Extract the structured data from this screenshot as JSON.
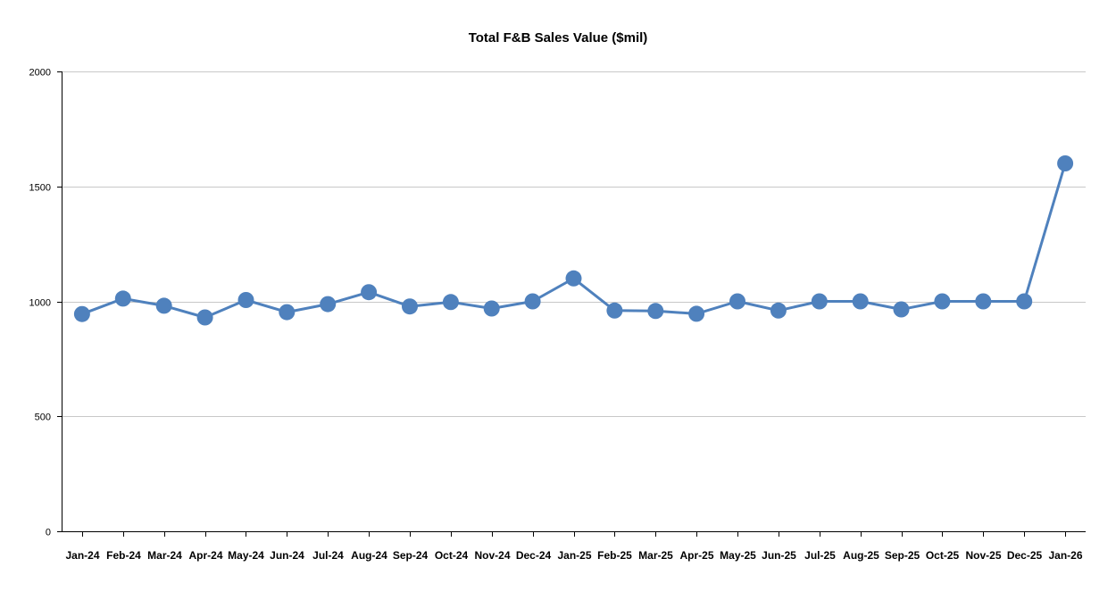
{
  "chart_data": {
    "type": "line",
    "title": "Total F&B Sales Value ($mil)",
    "xlabel": "",
    "ylabel": "",
    "ylim": [
      0,
      2000
    ],
    "yticks": [
      0,
      500,
      1000,
      1500,
      2000
    ],
    "grid": true,
    "legend": "none",
    "categories": [
      "Jan-24",
      "Feb-24",
      "Mar-24",
      "Apr-24",
      "May-24",
      "Jun-24",
      "Jul-24",
      "Aug-24",
      "Sep-24",
      "Oct-24",
      "Nov-24",
      "Dec-24",
      "Jan-25",
      "Feb-25",
      "Mar-25",
      "Apr-25",
      "May-25",
      "Jun-25",
      "Jul-25",
      "Aug-25",
      "Sep-25",
      "Oct-25",
      "Nov-25",
      "Dec-25",
      "Jan-26"
    ],
    "series": [
      {
        "color": "#4f81bd",
        "values": [
          945,
          1012,
          981,
          930,
          1006,
          953,
          988,
          1040,
          978,
          997,
          969,
          1000,
          1100,
          960,
          958,
          946,
          1000,
          960,
          1000,
          1000,
          965,
          1000,
          1000,
          1000,
          1600
        ]
      }
    ]
  }
}
